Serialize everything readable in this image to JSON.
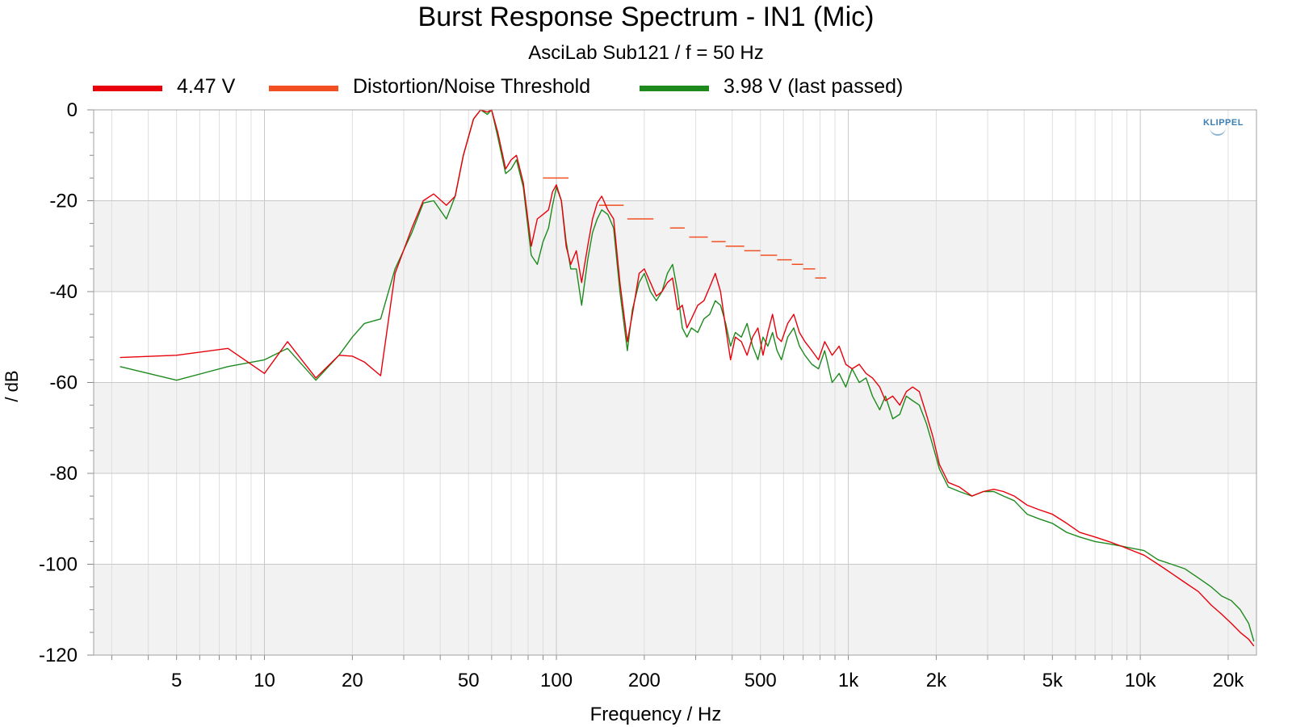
{
  "chart_data": {
    "type": "line",
    "title": "Burst Response Spectrum - IN1 (Mic)",
    "subtitle": "AsciLab Sub121 / f = 50 Hz",
    "xlabel": "Frequency / Hz",
    "ylabel": "/ dB",
    "x_scale": "log",
    "xlim": [
      2.6,
      25000
    ],
    "ylim": [
      -120,
      0
    ],
    "grid": true,
    "legend_position": "top",
    "x_ticks": [
      {
        "value": 5,
        "label": "5"
      },
      {
        "value": 10,
        "label": "10"
      },
      {
        "value": 20,
        "label": "20"
      },
      {
        "value": 50,
        "label": "50"
      },
      {
        "value": 100,
        "label": "100"
      },
      {
        "value": 200,
        "label": "200"
      },
      {
        "value": 500,
        "label": "500"
      },
      {
        "value": 1000,
        "label": "1k"
      },
      {
        "value": 2000,
        "label": "2k"
      },
      {
        "value": 5000,
        "label": "5k"
      },
      {
        "value": 10000,
        "label": "10k"
      },
      {
        "value": 20000,
        "label": "20k"
      }
    ],
    "y_ticks": [
      0,
      -20,
      -40,
      -60,
      -80,
      -100,
      -120
    ],
    "series": [
      {
        "name": "4.47 V",
        "color": "#e8000b",
        "points": [
          [
            3.2,
            -54.5
          ],
          [
            5,
            -54
          ],
          [
            7.5,
            -52.5
          ],
          [
            10,
            -58
          ],
          [
            12,
            -51
          ],
          [
            15,
            -59
          ],
          [
            18,
            -54
          ],
          [
            20,
            -54.2
          ],
          [
            22,
            -55.5
          ],
          [
            25,
            -58.5
          ],
          [
            28,
            -36
          ],
          [
            32,
            -26
          ],
          [
            35,
            -20
          ],
          [
            38,
            -18.5
          ],
          [
            42,
            -21
          ],
          [
            45,
            -19
          ],
          [
            48,
            -10
          ],
          [
            52,
            -2
          ],
          [
            55,
            0
          ],
          [
            58,
            -0.5
          ],
          [
            60,
            0
          ],
          [
            63,
            -5
          ],
          [
            67,
            -13
          ],
          [
            70,
            -11
          ],
          [
            73,
            -10
          ],
          [
            77,
            -16
          ],
          [
            82,
            -30
          ],
          [
            86,
            -24
          ],
          [
            90,
            -23
          ],
          [
            94,
            -22
          ],
          [
            97,
            -18
          ],
          [
            100,
            -16.5
          ],
          [
            104,
            -20
          ],
          [
            108,
            -30
          ],
          [
            112,
            -34
          ],
          [
            117,
            -31
          ],
          [
            122,
            -38
          ],
          [
            128,
            -30
          ],
          [
            133,
            -24
          ],
          [
            138,
            -20.5
          ],
          [
            143,
            -19
          ],
          [
            150,
            -22
          ],
          [
            157,
            -24
          ],
          [
            165,
            -38
          ],
          [
            175,
            -51
          ],
          [
            182,
            -45
          ],
          [
            192,
            -36
          ],
          [
            200,
            -35
          ],
          [
            210,
            -38
          ],
          [
            220,
            -41
          ],
          [
            230,
            -40
          ],
          [
            240,
            -38
          ],
          [
            250,
            -37
          ],
          [
            260,
            -44
          ],
          [
            270,
            -43
          ],
          [
            280,
            -48
          ],
          [
            290,
            -46
          ],
          [
            305,
            -43
          ],
          [
            320,
            -42
          ],
          [
            335,
            -39
          ],
          [
            350,
            -36
          ],
          [
            365,
            -40
          ],
          [
            380,
            -48
          ],
          [
            395,
            -55
          ],
          [
            410,
            -50
          ],
          [
            430,
            -51
          ],
          [
            450,
            -54
          ],
          [
            470,
            -50
          ],
          [
            490,
            -48
          ],
          [
            510,
            -54
          ],
          [
            530,
            -49
          ],
          [
            550,
            -45
          ],
          [
            570,
            -50
          ],
          [
            590,
            -51
          ],
          [
            620,
            -47
          ],
          [
            650,
            -45
          ],
          [
            680,
            -49
          ],
          [
            710,
            -51
          ],
          [
            750,
            -53
          ],
          [
            790,
            -55
          ],
          [
            830,
            -51
          ],
          [
            880,
            -54
          ],
          [
            930,
            -52
          ],
          [
            980,
            -56
          ],
          [
            1030,
            -57
          ],
          [
            1090,
            -56
          ],
          [
            1150,
            -58
          ],
          [
            1210,
            -59
          ],
          [
            1280,
            -61
          ],
          [
            1340,
            -64
          ],
          [
            1420,
            -63
          ],
          [
            1500,
            -65
          ],
          [
            1580,
            -62
          ],
          [
            1660,
            -61
          ],
          [
            1750,
            -62
          ],
          [
            1850,
            -67
          ],
          [
            1950,
            -72
          ],
          [
            2050,
            -78
          ],
          [
            2200,
            -82
          ],
          [
            2400,
            -83
          ],
          [
            2650,
            -85
          ],
          [
            2900,
            -84
          ],
          [
            3150,
            -83.5
          ],
          [
            3400,
            -84
          ],
          [
            3700,
            -85
          ],
          [
            4100,
            -87
          ],
          [
            4500,
            -88
          ],
          [
            5000,
            -89
          ],
          [
            5600,
            -91
          ],
          [
            6200,
            -93
          ],
          [
            7000,
            -94
          ],
          [
            7800,
            -95
          ],
          [
            8600,
            -96
          ],
          [
            9400,
            -97
          ],
          [
            10300,
            -98
          ],
          [
            11500,
            -100
          ],
          [
            12800,
            -102
          ],
          [
            14200,
            -104
          ],
          [
            15800,
            -106
          ],
          [
            17500,
            -109
          ],
          [
            19000,
            -111
          ],
          [
            20500,
            -113
          ],
          [
            22000,
            -115
          ],
          [
            23500,
            -116.5
          ],
          [
            24500,
            -118
          ]
        ]
      },
      {
        "name": "Distortion/Noise Threshold",
        "color": "#f25022",
        "segments": [
          [
            90,
            110,
            -15
          ],
          [
            140,
            170,
            -21
          ],
          [
            175,
            215,
            -24
          ],
          [
            245,
            275,
            -26
          ],
          [
            285,
            330,
            -28
          ],
          [
            340,
            380,
            -29
          ],
          [
            380,
            440,
            -30
          ],
          [
            440,
            500,
            -31
          ],
          [
            500,
            570,
            -32
          ],
          [
            570,
            640,
            -33
          ],
          [
            640,
            700,
            -34
          ],
          [
            700,
            770,
            -35
          ],
          [
            770,
            840,
            -37
          ]
        ]
      },
      {
        "name": "3.98 V (last passed)",
        "color": "#1e8a1e",
        "points": [
          [
            3.2,
            -56.5
          ],
          [
            5,
            -59.5
          ],
          [
            7.5,
            -56.5
          ],
          [
            10,
            -55
          ],
          [
            12,
            -52.5
          ],
          [
            15,
            -59.5
          ],
          [
            18,
            -54
          ],
          [
            20,
            -50
          ],
          [
            22,
            -47
          ],
          [
            25,
            -46
          ],
          [
            28,
            -35
          ],
          [
            32,
            -27
          ],
          [
            35,
            -20.5
          ],
          [
            38,
            -20
          ],
          [
            42,
            -24
          ],
          [
            45,
            -19
          ],
          [
            48,
            -10
          ],
          [
            52,
            -2
          ],
          [
            55,
            0
          ],
          [
            58,
            -1
          ],
          [
            60,
            0
          ],
          [
            63,
            -6
          ],
          [
            67,
            -14
          ],
          [
            70,
            -13
          ],
          [
            73,
            -11
          ],
          [
            77,
            -17
          ],
          [
            82,
            -32
          ],
          [
            86,
            -34
          ],
          [
            90,
            -29
          ],
          [
            94,
            -26
          ],
          [
            97,
            -21
          ],
          [
            100,
            -17
          ],
          [
            104,
            -20
          ],
          [
            108,
            -29
          ],
          [
            112,
            -35
          ],
          [
            117,
            -35
          ],
          [
            122,
            -43
          ],
          [
            128,
            -33
          ],
          [
            133,
            -27
          ],
          [
            138,
            -24
          ],
          [
            143,
            -22
          ],
          [
            150,
            -23
          ],
          [
            157,
            -26
          ],
          [
            165,
            -40
          ],
          [
            175,
            -53
          ],
          [
            182,
            -44
          ],
          [
            192,
            -38
          ],
          [
            200,
            -36
          ],
          [
            210,
            -40
          ],
          [
            220,
            -42
          ],
          [
            230,
            -40
          ],
          [
            240,
            -36
          ],
          [
            250,
            -34
          ],
          [
            260,
            -40
          ],
          [
            270,
            -48
          ],
          [
            280,
            -50
          ],
          [
            290,
            -48
          ],
          [
            305,
            -49
          ],
          [
            320,
            -46
          ],
          [
            335,
            -45
          ],
          [
            350,
            -42
          ],
          [
            365,
            -43
          ],
          [
            380,
            -47
          ],
          [
            395,
            -52
          ],
          [
            410,
            -49
          ],
          [
            430,
            -50
          ],
          [
            450,
            -47
          ],
          [
            470,
            -52
          ],
          [
            490,
            -55
          ],
          [
            510,
            -50
          ],
          [
            530,
            -52
          ],
          [
            550,
            -49
          ],
          [
            570,
            -53
          ],
          [
            590,
            -55
          ],
          [
            620,
            -50
          ],
          [
            650,
            -48
          ],
          [
            680,
            -52
          ],
          [
            710,
            -54
          ],
          [
            750,
            -56
          ],
          [
            790,
            -57
          ],
          [
            830,
            -53
          ],
          [
            880,
            -60
          ],
          [
            930,
            -58
          ],
          [
            980,
            -61
          ],
          [
            1030,
            -57
          ],
          [
            1090,
            -60
          ],
          [
            1150,
            -59
          ],
          [
            1210,
            -63
          ],
          [
            1280,
            -66
          ],
          [
            1340,
            -63
          ],
          [
            1420,
            -68
          ],
          [
            1500,
            -67
          ],
          [
            1580,
            -63
          ],
          [
            1660,
            -64
          ],
          [
            1750,
            -65
          ],
          [
            1850,
            -69
          ],
          [
            1950,
            -74
          ],
          [
            2050,
            -79
          ],
          [
            2200,
            -83
          ],
          [
            2400,
            -84
          ],
          [
            2650,
            -85
          ],
          [
            2900,
            -84
          ],
          [
            3150,
            -84
          ],
          [
            3400,
            -85
          ],
          [
            3700,
            -86
          ],
          [
            4100,
            -89
          ],
          [
            4500,
            -90
          ],
          [
            5000,
            -91
          ],
          [
            5600,
            -93
          ],
          [
            6200,
            -94
          ],
          [
            7000,
            -95
          ],
          [
            7800,
            -95.5
          ],
          [
            8600,
            -96
          ],
          [
            9400,
            -96.5
          ],
          [
            10300,
            -97
          ],
          [
            11500,
            -99
          ],
          [
            12800,
            -100
          ],
          [
            14200,
            -101
          ],
          [
            15800,
            -103
          ],
          [
            17500,
            -105
          ],
          [
            19000,
            -107
          ],
          [
            20500,
            -108
          ],
          [
            22000,
            -110
          ],
          [
            23500,
            -113
          ],
          [
            24500,
            -117
          ]
        ]
      }
    ]
  },
  "brand": {
    "text": "KLIPPEL"
  }
}
